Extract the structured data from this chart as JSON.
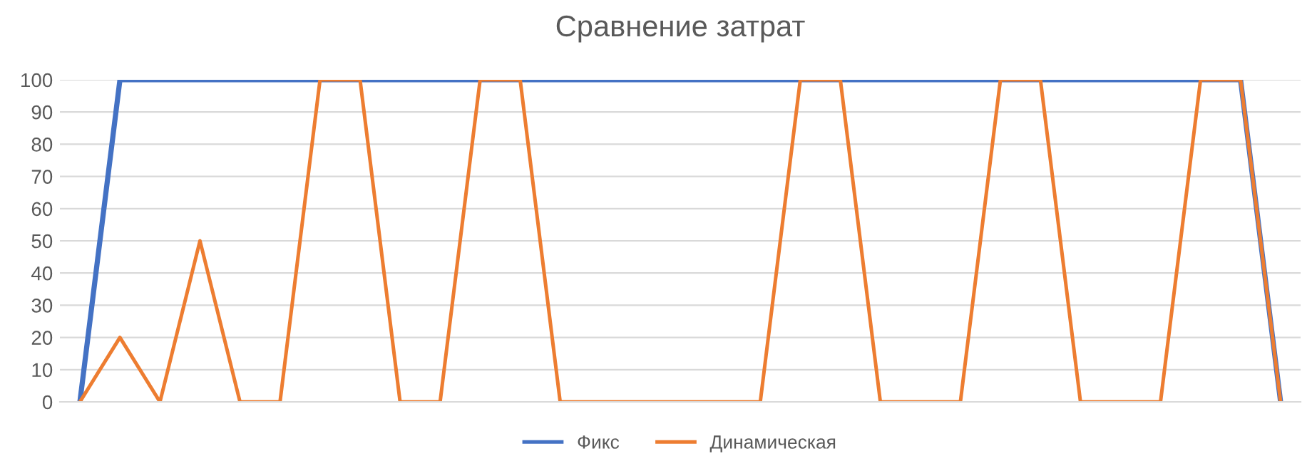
{
  "chart_data": {
    "type": "line",
    "title": "Сравнение затрат",
    "categories": [
      null,
      null,
      null,
      null,
      null,
      null,
      null,
      null,
      null,
      null,
      null,
      null,
      null,
      null,
      null,
      null,
      null,
      null,
      null,
      null,
      null,
      null,
      null,
      null,
      null,
      null,
      null,
      null,
      null,
      null,
      null
    ],
    "series": [
      {
        "name": "Фикс",
        "color": "#4472c4",
        "values": [
          0,
          100,
          100,
          100,
          100,
          100,
          100,
          100,
          100,
          100,
          100,
          100,
          100,
          100,
          100,
          100,
          100,
          100,
          100,
          100,
          100,
          100,
          100,
          100,
          100,
          100,
          100,
          100,
          100,
          100,
          0
        ]
      },
      {
        "name": "Динамическая",
        "color": "#ed7d31",
        "values": [
          0,
          20,
          0,
          50,
          0,
          0,
          100,
          100,
          0,
          0,
          100,
          100,
          0,
          0,
          0,
          0,
          0,
          0,
          100,
          100,
          0,
          0,
          0,
          100,
          100,
          0,
          0,
          0,
          100,
          100,
          0
        ]
      }
    ],
    "ylim": [
      0,
      100
    ],
    "yticks": [
      0,
      10,
      20,
      30,
      40,
      50,
      60,
      70,
      80,
      90,
      100
    ],
    "grid": "y",
    "legend": "bottom",
    "marker": "none",
    "line_style": "solid"
  }
}
